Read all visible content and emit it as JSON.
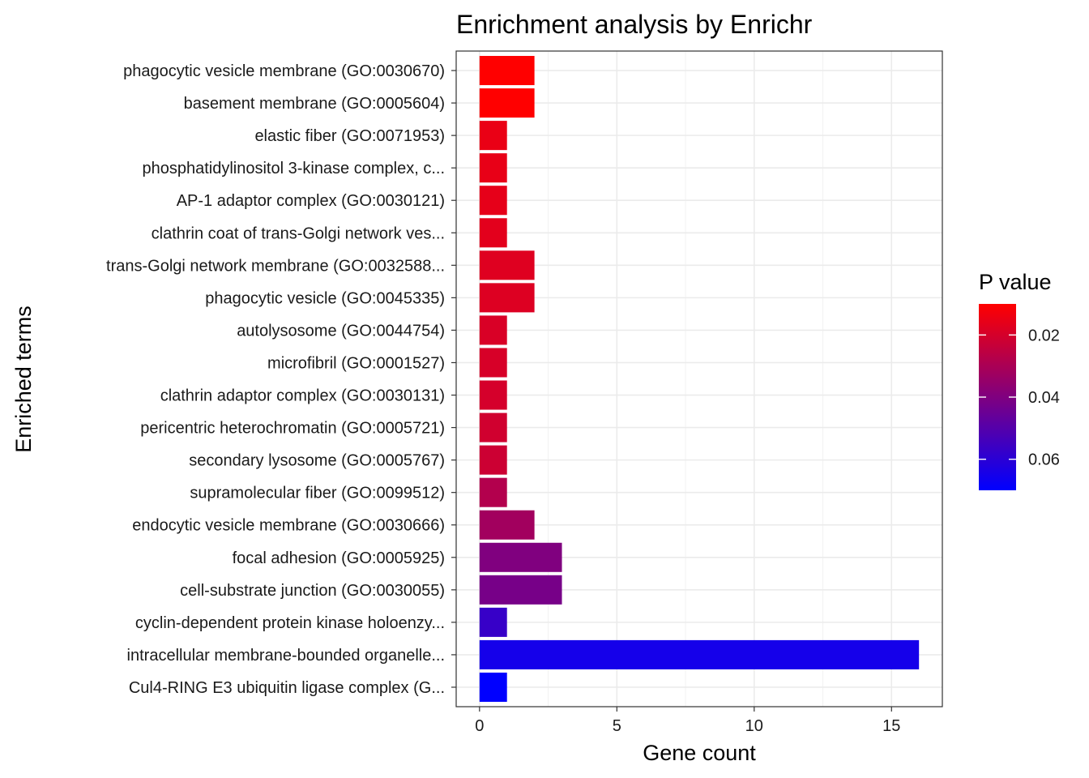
{
  "chart_data": {
    "type": "bar",
    "orientation": "horizontal",
    "title": "Enrichment analysis by Enrichr",
    "xlabel": "Gene count",
    "ylabel": "Enriched terms",
    "xlim": [
      -0.85,
      16.85
    ],
    "xticks": [
      0,
      5,
      10,
      15
    ],
    "grid": true,
    "categories": [
      "phagocytic vesicle membrane (GO:0030670)",
      "basement membrane (GO:0005604)",
      "elastic fiber (GO:0071953)",
      "phosphatidylinositol 3-kinase complex, c...",
      "AP-1 adaptor complex (GO:0030121)",
      "clathrin coat of trans-Golgi network ves...",
      "trans-Golgi network membrane (GO:0032588...",
      "phagocytic vesicle (GO:0045335)",
      "autolysosome (GO:0044754)",
      "microfibril (GO:0001527)",
      "clathrin adaptor complex (GO:0030131)",
      "pericentric heterochromatin (GO:0005721)",
      "secondary lysosome (GO:0005767)",
      "supramolecular fiber (GO:0099512)",
      "endocytic vesicle membrane (GO:0030666)",
      "focal adhesion (GO:0005925)",
      "cell-substrate junction (GO:0030055)",
      "cyclin-dependent protein kinase holoenzy...",
      "intracellular membrane-bounded organelle...",
      "Cul4-RING E3 ubiquitin ligase complex (G..."
    ],
    "values": [
      2,
      2,
      1,
      1,
      1,
      1,
      2,
      2,
      1,
      1,
      1,
      1,
      1,
      1,
      2,
      3,
      3,
      1,
      16,
      1
    ],
    "pvalues": [
      0.01,
      0.01,
      0.015,
      0.0155,
      0.016,
      0.0165,
      0.0175,
      0.018,
      0.019,
      0.0195,
      0.02,
      0.021,
      0.022,
      0.028,
      0.032,
      0.04,
      0.042,
      0.057,
      0.065,
      0.07
    ],
    "legend": {
      "title": "P value",
      "placement": "right",
      "range": [
        0.01,
        0.07
      ],
      "ticks": [
        0.02,
        0.04,
        0.06
      ],
      "tick_labels": [
        "0.02",
        "0.04",
        "0.06"
      ],
      "low_color": "#ff0000",
      "high_color": "#0000ff"
    }
  }
}
